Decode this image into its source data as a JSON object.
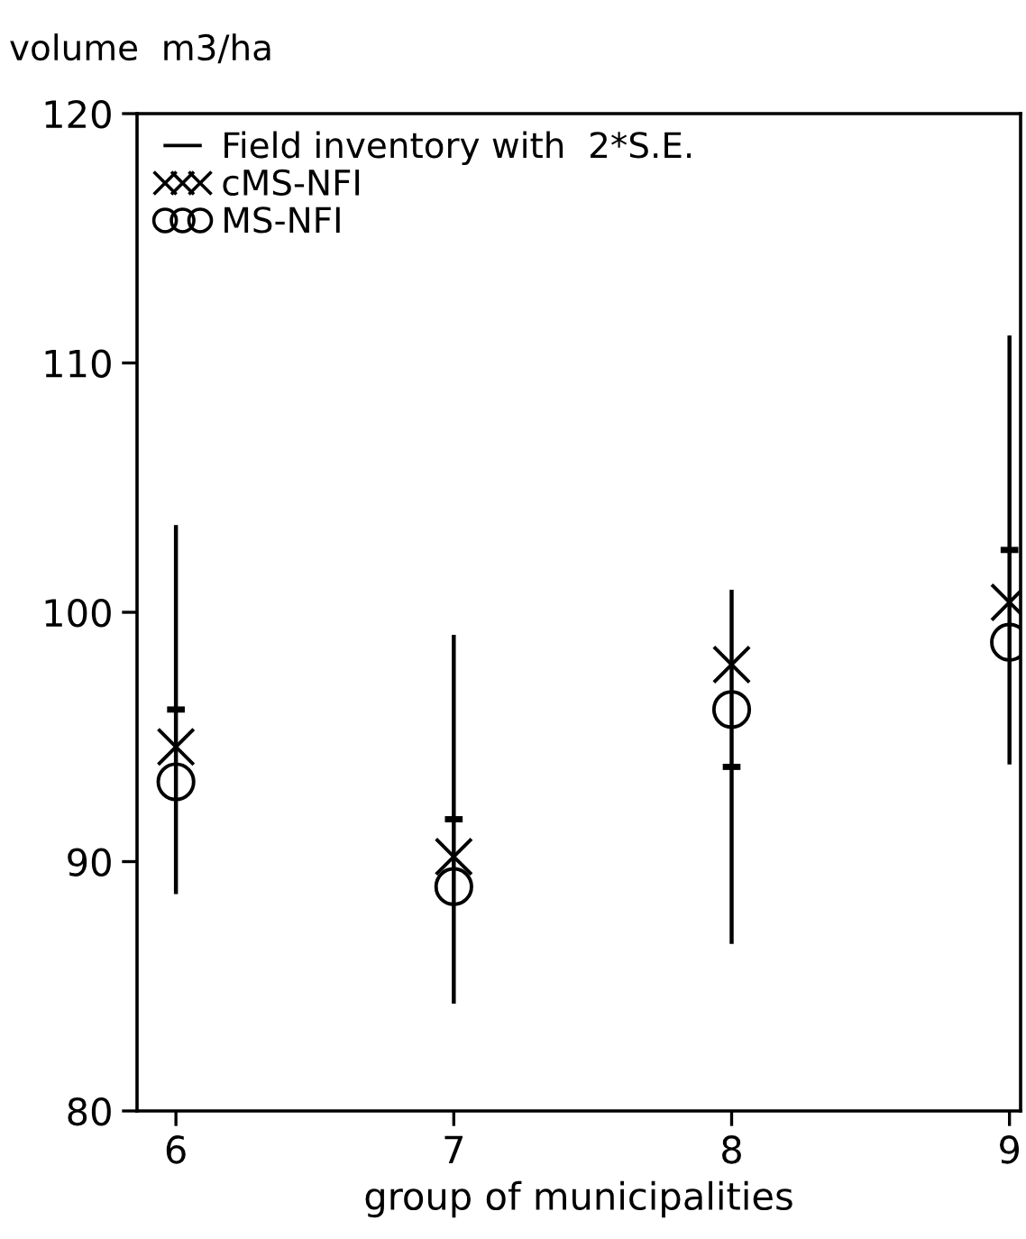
{
  "chart_data": {
    "type": "scatter",
    "xlabel": "group of municipalities",
    "ylabel": "volume  m3/ha",
    "x": [
      6,
      7,
      8,
      9
    ],
    "series": [
      {
        "name": "Field inventory with  2*S.E.",
        "color": "#000000",
        "values": [
          96.1,
          91.7,
          93.8,
          102.5
        ],
        "errors": [
          7.4,
          7.4,
          7.1,
          8.6
        ]
      },
      {
        "name": "cMS-NFI",
        "color": "#000000",
        "values": [
          94.6,
          90.2,
          97.9,
          100.4
        ],
        "marker": "cross"
      },
      {
        "name": "MS-NFI",
        "color": "#000000",
        "values": [
          93.2,
          89.0,
          96.1,
          98.8
        ],
        "marker": "circle"
      }
    ],
    "xlim": [
      5.86,
      9.04
    ],
    "xticks": [
      6,
      7,
      8,
      9
    ],
    "ylim": [
      80,
      120
    ],
    "yticks": [
      80,
      90,
      100,
      110,
      120
    ],
    "grid": false,
    "legend": "top left"
  }
}
